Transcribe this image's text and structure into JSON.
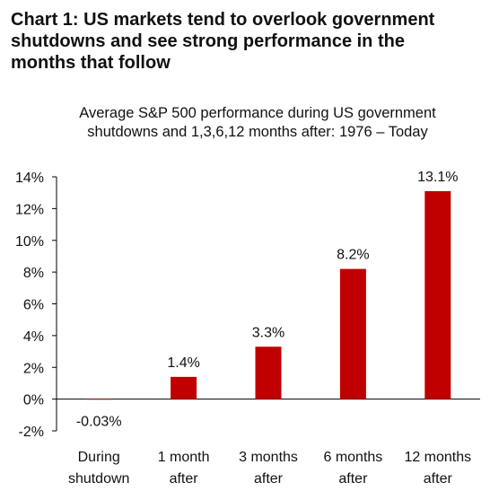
{
  "heading": {
    "line1": "Chart 1: US markets tend to overlook government",
    "line2": "shutdowns and see strong performance in the",
    "line3": "months that follow"
  },
  "chart_data": {
    "type": "bar",
    "title": "Average S&P 500 performance during US government shutdowns and 1,3,6,12 months after: 1976 – Today",
    "title_lines": [
      "Average S&P 500 performance during US government",
      "shutdowns and 1,3,6,12 months after: 1976 – Today"
    ],
    "categories": [
      [
        "During",
        "shutdown"
      ],
      [
        "1 month",
        "after"
      ],
      [
        "3 months",
        "after"
      ],
      [
        "6 months",
        "after"
      ],
      [
        "12 months",
        "after"
      ]
    ],
    "values": [
      -0.03,
      1.4,
      3.3,
      8.2,
      13.1
    ],
    "data_labels": [
      "-0.03%",
      "1.4%",
      "3.3%",
      "8.2%",
      "13.1%"
    ],
    "ylim": [
      -2,
      14
    ],
    "yticks": [
      -2,
      0,
      2,
      4,
      6,
      8,
      10,
      12,
      14
    ],
    "ytick_labels": [
      "-2%",
      "0%",
      "2%",
      "4%",
      "6%",
      "8%",
      "10%",
      "12%",
      "14%"
    ],
    "bar_color": "#c00000",
    "grid": false,
    "legend": "none"
  }
}
